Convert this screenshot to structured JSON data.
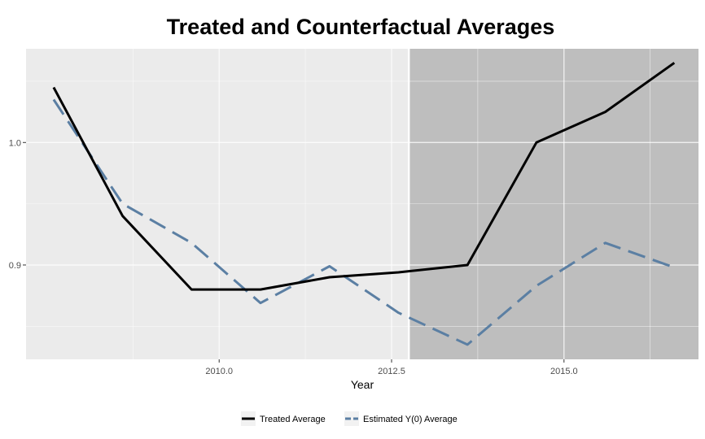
{
  "chart_data": {
    "type": "line",
    "title": "Treated and Counterfactual Averages",
    "xlabel": "Year",
    "ylabel": "",
    "xlim": [
      2007.2,
      2016.95
    ],
    "ylim": [
      0.823,
      1.0765
    ],
    "x_ticks": [
      2010.0,
      2012.5,
      2015.0
    ],
    "x_tick_labels": [
      "2010.0",
      "2012.5",
      "2015.0"
    ],
    "y_ticks": [
      0.9,
      1.0
    ],
    "y_tick_labels": [
      "0.9",
      "1.0"
    ],
    "grid": true,
    "shaded_region": {
      "x_start": 2012.75,
      "x_end": 2016.95,
      "color": "#bebebe"
    },
    "vertical_line": {
      "x": 2012.75,
      "color": "#ffffff"
    },
    "legend_position": "bottom",
    "series": [
      {
        "name": "Treated Average",
        "color": "#000000",
        "style": "solid",
        "x": [
          2007.6,
          2008.6,
          2009.6,
          2010.6,
          2011.6,
          2012.6,
          2013.6,
          2014.6,
          2015.6,
          2016.6
        ],
        "values": [
          1.045,
          0.94,
          0.88,
          0.88,
          0.89,
          0.894,
          0.9,
          1.0,
          1.025,
          1.065
        ]
      },
      {
        "name": "Estimated Y(0) Average",
        "color": "#5b7fa3",
        "style": "dashed",
        "x": [
          2007.6,
          2008.6,
          2009.6,
          2010.6,
          2011.6,
          2012.6,
          2013.6,
          2014.6,
          2015.6,
          2016.6
        ],
        "values": [
          1.035,
          0.95,
          0.918,
          0.869,
          0.899,
          0.861,
          0.835,
          0.883,
          0.918,
          0.898
        ]
      }
    ]
  }
}
